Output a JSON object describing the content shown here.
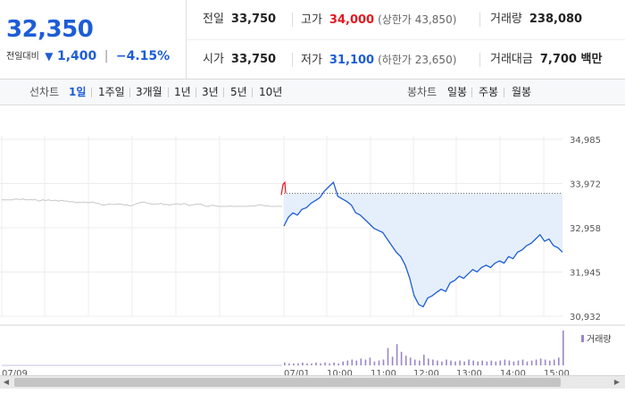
{
  "summary": {
    "current_price": "32,350",
    "change_label": "전일대비",
    "change_arrow": "▼",
    "change_amount": "1,400",
    "change_sep": "|",
    "change_percent": "−4.15%",
    "prev_close_label": "전일",
    "prev_close": "33,750",
    "high_label": "고가",
    "high": "34,000",
    "upper_limit": "(상한가 43,850)",
    "volume_label": "거래량",
    "volume": "238,080",
    "open_label": "시가",
    "open": "33,750",
    "low_label": "저가",
    "low": "31,100",
    "lower_limit": "(하한가 23,650)",
    "trade_value_label": "거래대금",
    "trade_value": "7,700 백만"
  },
  "toolbar": {
    "line_chart_label": "선차트",
    "periods": [
      "1일",
      "1주일",
      "3개월",
      "1년",
      "3년",
      "5년",
      "10년"
    ],
    "active_period": "1일",
    "candle_chart_label": "봉차트",
    "candle_periods": [
      "일봉",
      "주봉",
      "월봉"
    ]
  },
  "chart_data": {
    "type": "line",
    "y_ticks": [
      "34,985",
      "33,972",
      "32,958",
      "31,945",
      "30,932"
    ],
    "ylim": [
      30932,
      34985
    ],
    "prev_close": 33750,
    "volume_legend": "거래량",
    "series": [
      {
        "values": [
          33000,
          33200,
          33300,
          33250,
          33380,
          33420,
          33520,
          33580,
          33650,
          33800,
          33900,
          34000,
          33680,
          33620,
          33560,
          33480,
          33300,
          33250,
          33150,
          33050,
          32950,
          32900,
          32850,
          32700,
          32550,
          32400,
          32300,
          32100,
          31800,
          31400,
          31200,
          31150,
          31350,
          31400,
          31480,
          31550,
          31500,
          31700,
          31750,
          31850,
          31800,
          31900,
          32000,
          31950,
          32050,
          32100,
          32050,
          32150,
          32200,
          32150,
          32300,
          32250,
          32400,
          32450,
          32550,
          32600,
          32700,
          32800,
          32650,
          32700,
          32550,
          32500,
          32400
        ]
      }
    ],
    "volume": [
      3,
      2,
      2,
      2,
      3,
      2,
      2,
      3,
      2,
      3,
      2,
      3,
      2,
      4,
      5,
      6,
      5,
      7,
      6,
      8,
      4,
      5,
      6,
      18,
      9,
      22,
      14,
      10,
      8,
      6,
      5,
      11,
      7,
      6,
      5,
      4,
      6,
      5,
      4,
      5,
      4,
      6,
      5,
      4,
      5,
      4,
      5,
      4,
      5,
      6,
      5,
      4,
      5,
      6,
      4,
      5,
      6,
      7,
      6,
      5,
      6,
      8,
      36
    ],
    "x_tick_labels": [
      "07/09",
      "07/01",
      "10:00",
      "11:00",
      "12:00",
      "13:00",
      "14:00",
      "15:00"
    ]
  },
  "colors": {
    "accent": "#1d5dd6",
    "up": "#e5171f",
    "volume_bar": "#9a86c9",
    "area_fill": "#e5effb",
    "prev_line": "#c8c8c8"
  }
}
